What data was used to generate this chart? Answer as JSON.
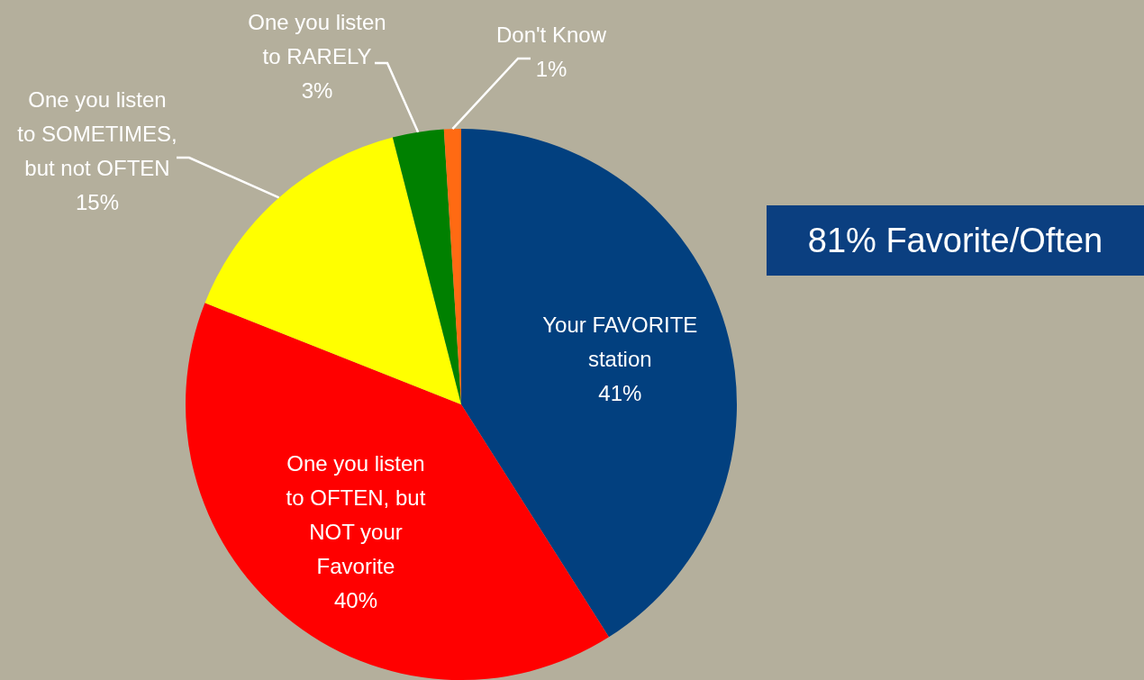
{
  "chart_data": {
    "type": "pie",
    "categories": [
      "Your FAVORITE station",
      "One you listen to OFTEN, but NOT your Favorite",
      "One you listen to SOMETIMES, but not OFTEN",
      "One you listen to RARELY",
      "Don't Know"
    ],
    "values": [
      41,
      40,
      15,
      3,
      1
    ],
    "value_labels": [
      "41%",
      "40%",
      "15%",
      "3%",
      "1%"
    ],
    "colors": [
      "#02407f",
      "#ff0000",
      "#ffff00",
      "#008000",
      "#ff6a13"
    ],
    "annotations": [
      "81% Favorite/Often"
    ]
  }
}
